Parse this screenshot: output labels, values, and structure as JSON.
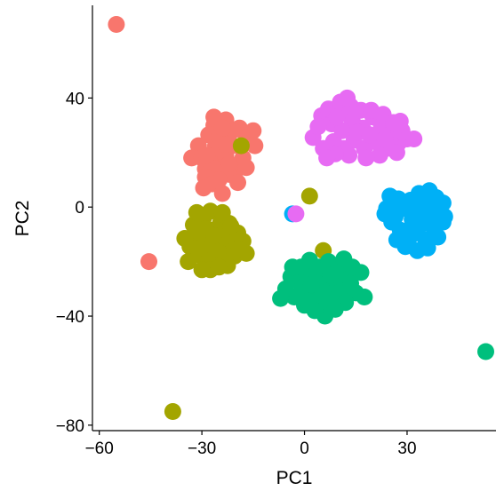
{
  "chart_data": {
    "type": "scatter",
    "title": "",
    "xlabel": "PC1",
    "ylabel": "PC2",
    "xlim": [
      -62,
      56
    ],
    "ylim": [
      -82,
      74
    ],
    "xticks": [
      -60,
      -30,
      0,
      30
    ],
    "yticks": [
      -80,
      -40,
      0,
      40
    ],
    "xtick_labels": [
      "−60",
      "−30",
      "0",
      "30"
    ],
    "ytick_labels": [
      "−80",
      "−40",
      "0",
      "40"
    ],
    "grid": false,
    "legend": "none",
    "series": [
      {
        "color": "#F8766D",
        "points": [
          [
            -55.0,
            67.0
          ],
          [
            -45.5,
            -20.0
          ],
          [
            -29.0,
            14.0
          ],
          [
            -27.0,
            17.5
          ],
          [
            -25.0,
            21.0
          ],
          [
            -23.0,
            18.5
          ],
          [
            -21.0,
            22.5
          ],
          [
            -24.5,
            26.0
          ],
          [
            -26.5,
            30.0
          ],
          [
            -23.0,
            32.0
          ],
          [
            -19.0,
            29.0
          ],
          [
            -17.0,
            25.5
          ],
          [
            -15.0,
            28.0
          ],
          [
            -14.5,
            22.5
          ],
          [
            -20.0,
            13.5
          ],
          [
            -18.0,
            18.0
          ],
          [
            -22.0,
            12.0
          ],
          [
            -26.0,
            22.5
          ],
          [
            -28.0,
            26.5
          ],
          [
            -31.0,
            22.5
          ],
          [
            -33.0,
            18.0
          ],
          [
            -30.0,
            18.0
          ],
          [
            -26.0,
            14.0
          ],
          [
            -25.0,
            10.0
          ],
          [
            -29.0,
            11.0
          ],
          [
            -29.5,
            7.0
          ],
          [
            -27.0,
            8.5
          ],
          [
            -24.0,
            5.0
          ],
          [
            -19.5,
            9.0
          ],
          [
            -21.0,
            28.0
          ],
          [
            -25.0,
            26.0
          ],
          [
            -28.5,
            19.0
          ],
          [
            -23.0,
            23.0
          ],
          [
            -22.0,
            16.0
          ],
          [
            -17.0,
            14.5
          ],
          [
            -26.5,
            33.0
          ],
          [
            -24.0,
            29.0
          ]
        ]
      },
      {
        "color": "#A3A500",
        "points": [
          [
            -38.5,
            -75.0
          ],
          [
            -18.5,
            22.5
          ],
          [
            1.5,
            4.0
          ],
          [
            5.5,
            -16.0
          ],
          [
            -31.0,
            -10.0
          ],
          [
            -29.0,
            -13.0
          ],
          [
            -27.0,
            -8.5
          ],
          [
            -25.0,
            -12.0
          ],
          [
            -23.0,
            -15.5
          ],
          [
            -21.0,
            -13.0
          ],
          [
            -19.5,
            -9.5
          ],
          [
            -20.5,
            -18.0
          ],
          [
            -22.5,
            -21.5
          ],
          [
            -25.5,
            -18.5
          ],
          [
            -28.0,
            -19.0
          ],
          [
            -31.0,
            -17.5
          ],
          [
            -33.5,
            -14.5
          ],
          [
            -35.0,
            -11.5
          ],
          [
            -32.5,
            -6.5
          ],
          [
            -29.5,
            -4.0
          ],
          [
            -27.5,
            -1.5
          ],
          [
            -24.5,
            -5.5
          ],
          [
            -22.0,
            -6.0
          ],
          [
            -18.0,
            -12.5
          ],
          [
            -17.0,
            -17.0
          ],
          [
            -27.5,
            -23.0
          ],
          [
            -30.0,
            -23.0
          ],
          [
            -25.0,
            -22.0
          ],
          [
            -34.0,
            -20.0
          ],
          [
            -31.5,
            -2.0
          ],
          [
            -29.0,
            -8.0
          ],
          [
            -26.0,
            -15.5
          ],
          [
            -23.5,
            -11.0
          ],
          [
            -19.0,
            -15.5
          ],
          [
            -30.5,
            -15.0
          ],
          [
            -26.5,
            -10.5
          ],
          [
            -24.0,
            -2.0
          ],
          [
            -21.5,
            -7.0
          ]
        ]
      },
      {
        "color": "#00BF7D",
        "points": [
          [
            53.0,
            -53.0
          ],
          [
            2.0,
            -24.0
          ],
          [
            4.5,
            -27.0
          ],
          [
            7.0,
            -30.0
          ],
          [
            9.5,
            -27.5
          ],
          [
            12.0,
            -24.5
          ],
          [
            10.5,
            -31.0
          ],
          [
            8.0,
            -34.0
          ],
          [
            5.5,
            -36.0
          ],
          [
            3.0,
            -33.5
          ],
          [
            0.5,
            -30.5
          ],
          [
            -1.5,
            -27.5
          ],
          [
            -3.0,
            -33.0
          ],
          [
            -5.5,
            -30.0
          ],
          [
            -4.0,
            -25.5
          ],
          [
            -1.0,
            -22.0
          ],
          [
            1.5,
            -19.5
          ],
          [
            4.5,
            -22.0
          ],
          [
            7.0,
            -20.0
          ],
          [
            10.0,
            -21.5
          ],
          [
            13.5,
            -28.0
          ],
          [
            15.0,
            -31.5
          ],
          [
            12.0,
            -35.0
          ],
          [
            9.0,
            -37.5
          ],
          [
            6.0,
            -40.0
          ],
          [
            3.0,
            -38.0
          ],
          [
            0.0,
            -36.0
          ],
          [
            -3.5,
            -22.0
          ],
          [
            16.5,
            -24.0
          ],
          [
            17.5,
            -33.0
          ],
          [
            11.5,
            -19.0
          ],
          [
            14.0,
            -22.0
          ],
          [
            5.0,
            -31.5
          ],
          [
            2.0,
            -28.5
          ],
          [
            -7.0,
            -33.5
          ],
          [
            1.0,
            -34.5
          ],
          [
            7.5,
            -25.0
          ]
        ]
      },
      {
        "color": "#00B0F6",
        "points": [
          [
            -3.5,
            -2.5
          ],
          [
            24.0,
            -0.5
          ],
          [
            26.5,
            -3.5
          ],
          [
            29.0,
            -0.5
          ],
          [
            31.5,
            -4.5
          ],
          [
            34.0,
            -1.5
          ],
          [
            36.5,
            1.5
          ],
          [
            38.5,
            -2.5
          ],
          [
            40.5,
            -5.5
          ],
          [
            38.0,
            -9.0
          ],
          [
            35.5,
            -12.0
          ],
          [
            33.0,
            -9.5
          ],
          [
            30.5,
            -11.5
          ],
          [
            28.0,
            -8.5
          ],
          [
            25.5,
            -5.5
          ],
          [
            25.0,
            4.0
          ],
          [
            27.5,
            3.0
          ],
          [
            31.0,
            2.5
          ],
          [
            33.5,
            5.0
          ],
          [
            36.5,
            6.0
          ],
          [
            38.5,
            3.5
          ],
          [
            40.5,
            1.5
          ],
          [
            41.0,
            -3.5
          ],
          [
            39.0,
            -11.0
          ],
          [
            36.0,
            -15.0
          ],
          [
            33.0,
            -16.0
          ],
          [
            29.5,
            -14.5
          ],
          [
            27.0,
            -12.0
          ],
          [
            31.5,
            -7.0
          ],
          [
            34.5,
            -6.0
          ],
          [
            28.5,
            0.0
          ],
          [
            32.5,
            -2.0
          ],
          [
            37.0,
            -5.5
          ],
          [
            23.5,
            -2.5
          ],
          [
            26.0,
            0.5
          ],
          [
            35.0,
            3.0
          ]
        ]
      },
      {
        "color": "#E76BF3",
        "points": [
          [
            -2.5,
            -2.5
          ],
          [
            5.0,
            33.5
          ],
          [
            8.0,
            30.5
          ],
          [
            11.0,
            34.5
          ],
          [
            14.0,
            31.5
          ],
          [
            17.0,
            29.0
          ],
          [
            20.0,
            33.0
          ],
          [
            22.5,
            29.5
          ],
          [
            25.0,
            26.5
          ],
          [
            27.5,
            23.5
          ],
          [
            24.0,
            21.5
          ],
          [
            20.5,
            24.0
          ],
          [
            17.5,
            21.5
          ],
          [
            14.5,
            24.5
          ],
          [
            11.5,
            21.5
          ],
          [
            8.5,
            24.0
          ],
          [
            5.5,
            21.5
          ],
          [
            2.5,
            25.5
          ],
          [
            4.0,
            29.5
          ],
          [
            7.0,
            36.0
          ],
          [
            10.5,
            38.5
          ],
          [
            13.5,
            37.0
          ],
          [
            16.5,
            35.5
          ],
          [
            19.5,
            35.5
          ],
          [
            23.0,
            34.0
          ],
          [
            26.0,
            31.0
          ],
          [
            28.5,
            28.0
          ],
          [
            30.0,
            25.0
          ],
          [
            27.0,
            20.0
          ],
          [
            22.0,
            19.0
          ],
          [
            18.0,
            18.0
          ],
          [
            13.0,
            19.0
          ],
          [
            9.0,
            19.5
          ],
          [
            6.5,
            18.0
          ],
          [
            11.0,
            28.0
          ],
          [
            15.5,
            27.5
          ],
          [
            19.0,
            26.5
          ],
          [
            23.5,
            25.0
          ],
          [
            9.5,
            33.0
          ],
          [
            28.0,
            31.5
          ],
          [
            32.0,
            25.0
          ],
          [
            12.5,
            40.0
          ]
        ]
      }
    ]
  }
}
